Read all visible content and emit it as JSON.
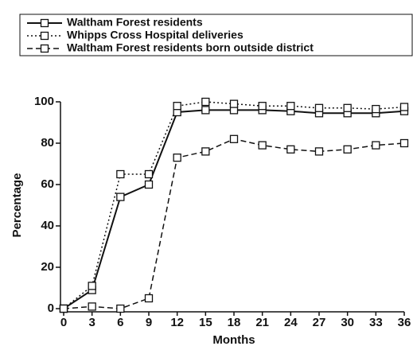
{
  "chart_data": {
    "type": "line",
    "x_label": "Months",
    "y_label": "Percentage",
    "x": [
      0,
      3,
      6,
      9,
      12,
      15,
      18,
      21,
      24,
      27,
      30,
      33,
      36
    ],
    "series": [
      {
        "name": "Waltham Forest residents",
        "color": "#111111",
        "linestyle": "solid",
        "values": [
          0,
          9,
          54,
          60,
          95,
          96,
          96,
          96,
          95.5,
          94.5,
          94.5,
          94.5,
          95.5
        ]
      },
      {
        "name": "Whipps Cross Hospital deliveries",
        "color": "#111111",
        "linestyle": "dotted",
        "values": [
          0,
          11,
          65,
          65,
          98,
          100,
          99,
          98,
          98,
          97,
          97,
          96.5,
          97.5
        ]
      },
      {
        "name": "Waltham Forest residents born outside district",
        "color": "#111111",
        "linestyle": "dashed",
        "values": [
          0,
          1,
          0,
          5,
          73,
          76,
          82,
          79,
          77,
          76,
          77,
          79,
          80
        ]
      }
    ],
    "xlim": [
      0,
      36
    ],
    "xticks": [
      0,
      3,
      6,
      9,
      12,
      15,
      18,
      21,
      24,
      27,
      30,
      33,
      36
    ],
    "ylim": [
      0,
      100
    ],
    "yticks": [
      0,
      20,
      40,
      60,
      80,
      100
    ],
    "grid": false,
    "legend": "top"
  }
}
